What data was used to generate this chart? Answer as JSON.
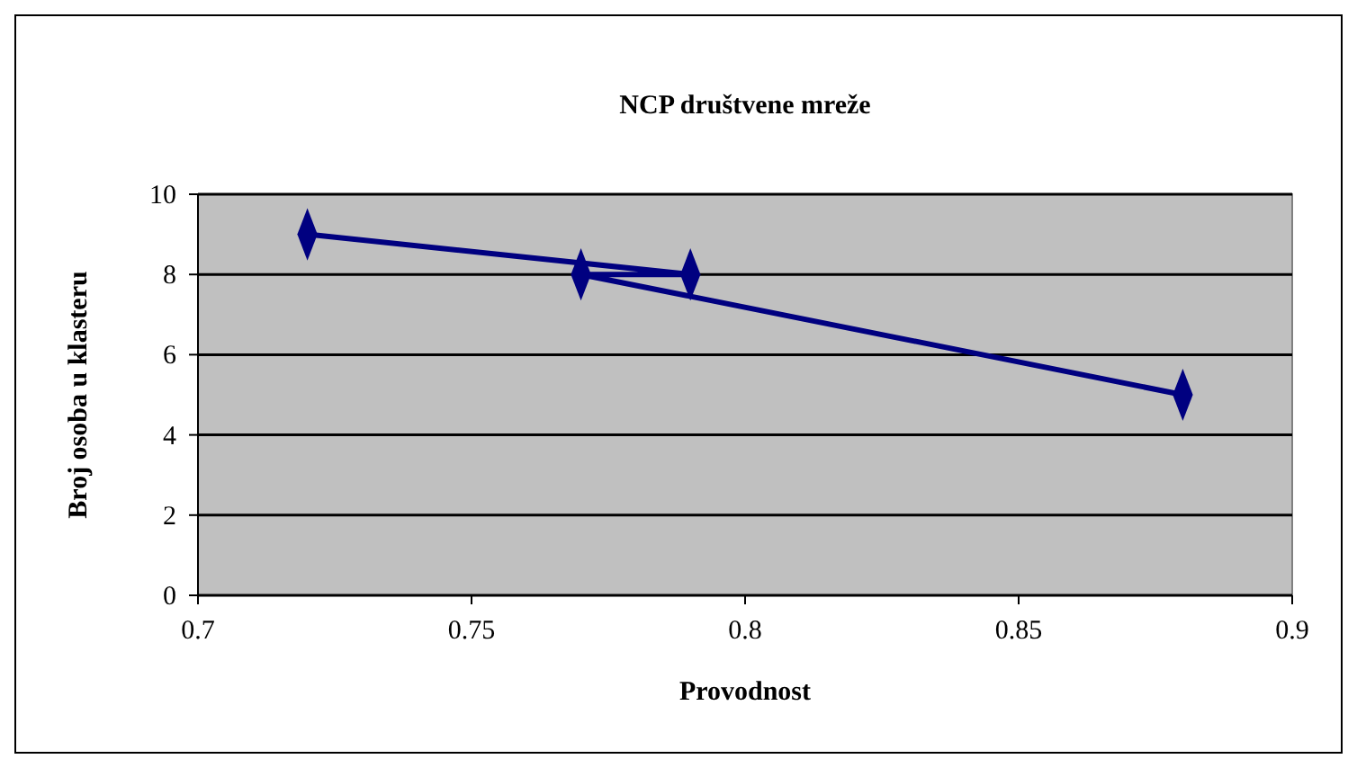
{
  "chart_data": {
    "type": "line",
    "title": "NCP društvene mreže",
    "xlabel": "Provodnost",
    "ylabel": "Broj osoba u klasteru",
    "x": [
      0.72,
      0.79,
      0.77,
      0.88
    ],
    "series": [
      {
        "color": "#000080",
        "values": [
          9,
          8,
          8,
          5
        ]
      }
    ],
    "xlim": [
      0.7,
      0.9
    ],
    "xticks": [
      0.7,
      0.75,
      0.8,
      0.85,
      0.9
    ],
    "ylim": [
      0,
      10
    ],
    "yticks": [
      0,
      2,
      4,
      6,
      8,
      10
    ],
    "grid": "y",
    "marker": "diamond",
    "line_style": "solid"
  }
}
